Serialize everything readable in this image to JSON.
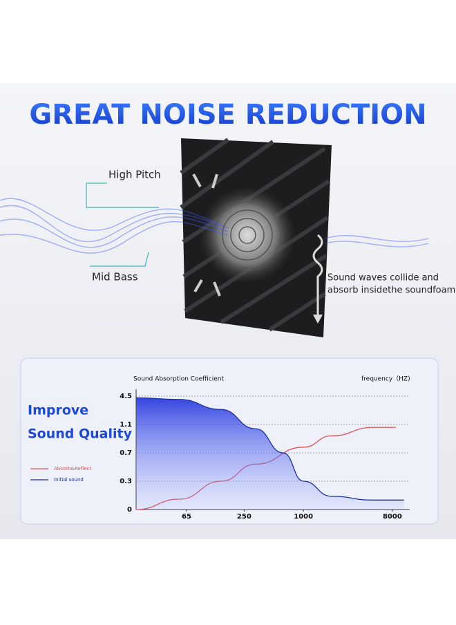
{
  "header": {
    "title": "GREAT NOISE REDUCTION"
  },
  "labels": {
    "high_pitch": "High Pitch",
    "mid_bass": "Mid Bass",
    "note_line1": "Sound waves collide and",
    "note_line2": "absorb insidethe soundfoam."
  },
  "panel": {
    "heading_line1": "Improve",
    "heading_line2": "Sound Quality"
  },
  "chart_data": {
    "type": "line",
    "title": "Sound Absorption Coefficient",
    "x_label": "frequency（HZ)",
    "xscale": "log",
    "xlim": [
      20,
      12000
    ],
    "xticks": [
      65,
      250,
      1000,
      8000
    ],
    "ylim": [
      0,
      4.5
    ],
    "yticks": [
      0,
      0.3,
      0.7,
      1.1,
      4.5
    ],
    "grid": true,
    "series": [
      {
        "name": "Absorb&Reflect",
        "color": "#e05050",
        "x": [
          20,
          55,
          146,
          327,
          1000,
          1930,
          5100,
          8700
        ],
        "values": [
          0,
          0.11,
          0.3,
          0.54,
          0.78,
          0.94,
          1.06,
          1.06
        ]
      },
      {
        "name": "Initial sound",
        "color": "#1a2fa0",
        "x": [
          20,
          55,
          146,
          327,
          624,
          1000,
          1930,
          5100,
          10500
        ],
        "values": [
          4.3,
          4.1,
          2.9,
          1.04,
          0.7,
          0.3,
          0.14,
          0.1,
          0.1
        ]
      }
    ]
  }
}
